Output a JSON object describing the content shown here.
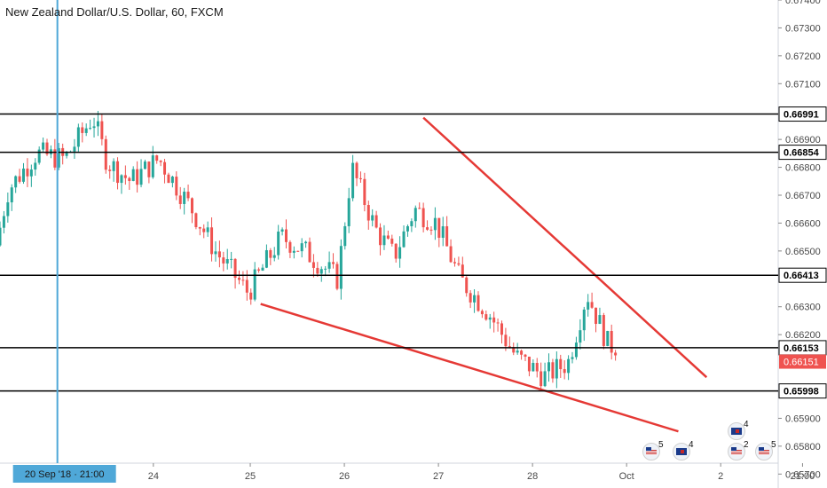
{
  "chart_title": "New Zealand Dollar/U.S. Dollar, 60, FXCM",
  "chart_data": {
    "type": "candlestick",
    "symbol": "NZD/USD",
    "interval": "60",
    "source": "FXCM",
    "ylim": [
      0.6565,
      0.674
    ],
    "y_ticks": [
      "0.67400",
      "0.67300",
      "0.67200",
      "0.67100",
      "0.66900",
      "0.66800",
      "0.66700",
      "0.66600",
      "0.66500",
      "0.66300",
      "0.66200",
      "0.65900",
      "0.65800",
      "0.65700"
    ],
    "x_ticks": [
      {
        "day": 23.9,
        "label": "24"
      },
      {
        "day": 24.93,
        "label": "25"
      },
      {
        "day": 25.93,
        "label": "26"
      },
      {
        "day": 26.93,
        "label": "27"
      },
      {
        "day": 27.93,
        "label": "28"
      },
      {
        "day": 28.93,
        "label": "Oct"
      },
      {
        "day": 29.93,
        "label": "2"
      },
      {
        "day": 30.8,
        "label": "21:00"
      }
    ],
    "x_range": [
      22.27,
      31.06
    ],
    "crosshair": {
      "day": 22.88,
      "label": "20 Sep '18 · 21:00"
    },
    "colors": {
      "up": "#26a69a",
      "down": "#ef5350",
      "trendline": "#e53935",
      "crosshair": "#4fa8d8",
      "level": "#000000",
      "last_price": "#ef5350"
    },
    "horizontal_levels": [
      {
        "price": 0.66991,
        "label": "0.66991"
      },
      {
        "price": 0.66854,
        "label": "0.66854"
      },
      {
        "price": 0.66413,
        "label": "0.66413"
      },
      {
        "price": 0.66153,
        "label": "0.66153"
      },
      {
        "price": 0.65998,
        "label": "0.65998"
      }
    ],
    "last_price": {
      "price": 0.66151,
      "label": "0.66151"
    },
    "trendlines": [
      {
        "from": {
          "day": 26.77,
          "price": 0.66978
        },
        "to": {
          "day": 29.78,
          "price": 0.66047
        }
      },
      {
        "from": {
          "day": 25.04,
          "price": 0.6631
        },
        "to": {
          "day": 29.48,
          "price": 0.65853
        }
      }
    ],
    "anchors": [
      {
        "day": 22.27,
        "price": 0.6652
      },
      {
        "day": 22.4,
        "price": 0.6672
      },
      {
        "day": 22.7,
        "price": 0.6685
      },
      {
        "day": 23.0,
        "price": 0.6683
      },
      {
        "day": 23.3,
        "price": 0.6698
      },
      {
        "day": 23.45,
        "price": 0.6682
      },
      {
        "day": 23.7,
        "price": 0.6675
      },
      {
        "day": 24.0,
        "price": 0.6683
      },
      {
        "day": 24.35,
        "price": 0.6665
      },
      {
        "day": 24.6,
        "price": 0.665
      },
      {
        "day": 24.95,
        "price": 0.6635
      },
      {
        "day": 25.3,
        "price": 0.6655
      },
      {
        "day": 25.55,
        "price": 0.665
      },
      {
        "day": 25.9,
        "price": 0.664
      },
      {
        "day": 26.05,
        "price": 0.668
      },
      {
        "day": 26.3,
        "price": 0.6658
      },
      {
        "day": 26.5,
        "price": 0.6648
      },
      {
        "day": 26.72,
        "price": 0.6665
      },
      {
        "day": 26.95,
        "price": 0.666
      },
      {
        "day": 27.2,
        "price": 0.664
      },
      {
        "day": 27.5,
        "price": 0.6628
      },
      {
        "day": 27.8,
        "price": 0.6612
      },
      {
        "day": 28.1,
        "price": 0.6605
      },
      {
        "day": 28.35,
        "price": 0.661
      },
      {
        "day": 28.55,
        "price": 0.6635
      },
      {
        "day": 28.78,
        "price": 0.6616
      }
    ],
    "candle_day_end": 28.82,
    "candles_per_day": 24
  },
  "event_flags": [
    {
      "country": "US",
      "count": "5"
    },
    {
      "country": "NZ",
      "count": "4"
    },
    {
      "country": "NZ",
      "count": "4"
    },
    {
      "country": "US",
      "count": "2"
    },
    {
      "country": "US",
      "count": "5"
    }
  ]
}
